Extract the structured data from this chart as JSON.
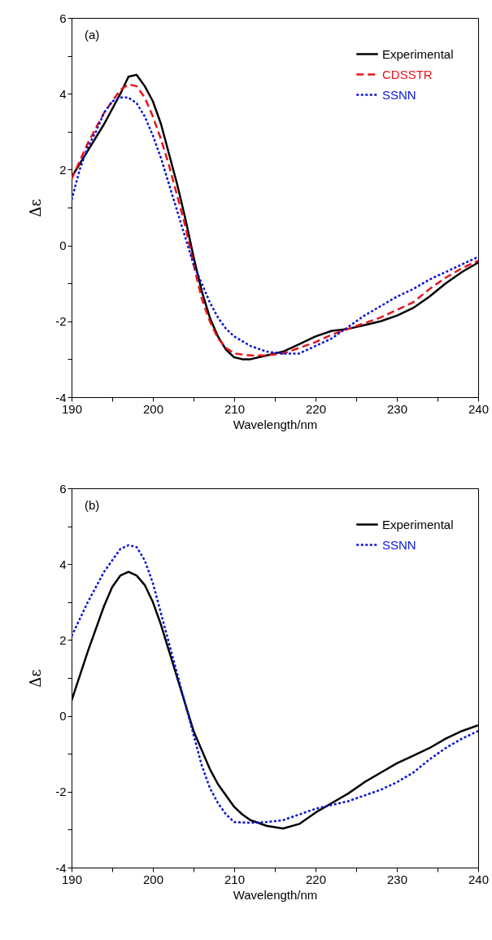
{
  "chart_data": [
    {
      "type": "line",
      "annotations": [
        "(a)"
      ],
      "xlabel": "Wavelength/nm",
      "ylabel": "Δε",
      "legend": "top right",
      "grid": false,
      "xlim": [
        190,
        240
      ],
      "xticks": [
        190,
        {
          "value": 195,
          "label": null
        },
        200,
        {
          "value": 205,
          "label": null
        },
        210,
        {
          "value": 215,
          "label": null
        },
        220,
        {
          "value": 225,
          "label": null
        },
        230,
        {
          "value": 235,
          "label": null
        },
        240
      ],
      "ylim": [
        -4,
        6
      ],
      "yticks": [
        -4,
        {
          "value": -3,
          "label": null
        },
        -2,
        {
          "value": -1,
          "label": null
        },
        0,
        {
          "value": 1,
          "label": null
        },
        2,
        {
          "value": 3,
          "label": null
        },
        4,
        {
          "value": 5,
          "label": null
        },
        6
      ],
      "series": [
        {
          "name": "Experimental",
          "color": "#000000",
          "line_style": "solid",
          "x": [
            190,
            192,
            194,
            196,
            197,
            198,
            199,
            200,
            201,
            202,
            203,
            204,
            205,
            206,
            207,
            208,
            209,
            210,
            211,
            212,
            214,
            216,
            218,
            220,
            222,
            224,
            226,
            228,
            230,
            232,
            234,
            236,
            238,
            240
          ],
          "values": [
            1.8,
            2.5,
            3.2,
            4.0,
            4.45,
            4.5,
            4.2,
            3.8,
            3.2,
            2.4,
            1.6,
            0.7,
            -0.3,
            -1.2,
            -1.9,
            -2.4,
            -2.75,
            -2.95,
            -3.0,
            -3.0,
            -2.9,
            -2.8,
            -2.6,
            -2.4,
            -2.25,
            -2.2,
            -2.1,
            -2.0,
            -1.85,
            -1.65,
            -1.35,
            -1.0,
            -0.7,
            -0.45
          ]
        },
        {
          "name": "CDSSTR",
          "color": "#e8141c",
          "line_style": "dashed",
          "x": [
            190,
            192,
            194,
            196,
            197,
            198,
            199,
            200,
            201,
            202,
            203,
            204,
            205,
            206,
            207,
            208,
            209,
            210,
            212,
            214,
            216,
            218,
            220,
            222,
            224,
            226,
            228,
            230,
            232,
            234,
            236,
            238,
            240
          ],
          "values": [
            1.75,
            2.7,
            3.5,
            4.1,
            4.25,
            4.2,
            3.9,
            3.4,
            2.8,
            2.1,
            1.3,
            0.5,
            -0.5,
            -1.4,
            -2.0,
            -2.45,
            -2.7,
            -2.85,
            -2.9,
            -2.9,
            -2.85,
            -2.7,
            -2.55,
            -2.35,
            -2.2,
            -2.05,
            -1.9,
            -1.7,
            -1.5,
            -1.15,
            -0.85,
            -0.6,
            -0.4
          ]
        },
        {
          "name": "SSNN",
          "color": "#0a14d4",
          "line_style": "dotted",
          "x": [
            190,
            191,
            192,
            193,
            194,
            195,
            196,
            197,
            198,
            199,
            200,
            201,
            202,
            203,
            204,
            205,
            206,
            207,
            208,
            209,
            210,
            212,
            214,
            216,
            218,
            220,
            222,
            224,
            226,
            228,
            230,
            232,
            234,
            236,
            238,
            240
          ],
          "values": [
            1.2,
            2.0,
            2.6,
            3.0,
            3.5,
            3.8,
            3.9,
            3.9,
            3.75,
            3.4,
            2.9,
            2.3,
            1.6,
            0.9,
            0.2,
            -0.5,
            -1.0,
            -1.5,
            -1.9,
            -2.2,
            -2.4,
            -2.65,
            -2.8,
            -2.85,
            -2.85,
            -2.65,
            -2.45,
            -2.15,
            -1.85,
            -1.6,
            -1.35,
            -1.15,
            -0.9,
            -0.7,
            -0.5,
            -0.3
          ]
        }
      ]
    },
    {
      "type": "line",
      "annotations": [
        "(b)"
      ],
      "xlabel": "Wavelength/nm",
      "ylabel": "Δε",
      "legend": "top right",
      "grid": false,
      "xlim": [
        190,
        240
      ],
      "xticks": [
        190,
        {
          "value": 195,
          "label": null
        },
        200,
        {
          "value": 205,
          "label": null
        },
        210,
        {
          "value": 215,
          "label": null
        },
        220,
        {
          "value": 225,
          "label": null
        },
        230,
        {
          "value": 235,
          "label": null
        },
        240
      ],
      "ylim": [
        -4,
        6
      ],
      "yticks": [
        -4,
        {
          "value": -3,
          "label": null
        },
        -2,
        {
          "value": -1,
          "label": null
        },
        0,
        {
          "value": 1,
          "label": null
        },
        2,
        {
          "value": 3,
          "label": null
        },
        4,
        {
          "value": 5,
          "label": null
        },
        6
      ],
      "series": [
        {
          "name": "Experimental",
          "color": "#000000",
          "line_style": "solid",
          "x": [
            190,
            192,
            194,
            195,
            196,
            197,
            198,
            199,
            200,
            201,
            202,
            203,
            204,
            205,
            206,
            207,
            208,
            209,
            210,
            211,
            212,
            214,
            216,
            218,
            220,
            222,
            224,
            226,
            228,
            230,
            232,
            234,
            236,
            238,
            240
          ],
          "values": [
            0.4,
            1.7,
            2.9,
            3.4,
            3.7,
            3.8,
            3.7,
            3.45,
            3.0,
            2.4,
            1.7,
            1.0,
            0.3,
            -0.4,
            -0.9,
            -1.4,
            -1.8,
            -2.1,
            -2.4,
            -2.6,
            -2.75,
            -2.9,
            -2.97,
            -2.85,
            -2.55,
            -2.3,
            -2.05,
            -1.75,
            -1.5,
            -1.25,
            -1.05,
            -0.85,
            -0.6,
            -0.4,
            -0.25
          ]
        },
        {
          "name": "SSNN",
          "color": "#0a14d4",
          "line_style": "dotted",
          "x": [
            190,
            192,
            194,
            196,
            197,
            198,
            199,
            200,
            201,
            202,
            203,
            204,
            205,
            206,
            207,
            208,
            209,
            210,
            212,
            214,
            216,
            218,
            220,
            222,
            224,
            226,
            228,
            230,
            232,
            234,
            236,
            238,
            240
          ],
          "values": [
            2.1,
            3.0,
            3.8,
            4.4,
            4.5,
            4.45,
            4.1,
            3.5,
            2.7,
            1.9,
            1.1,
            0.3,
            -0.5,
            -1.3,
            -1.9,
            -2.3,
            -2.6,
            -2.8,
            -2.82,
            -2.8,
            -2.75,
            -2.6,
            -2.45,
            -2.35,
            -2.25,
            -2.1,
            -1.95,
            -1.75,
            -1.5,
            -1.15,
            -0.85,
            -0.6,
            -0.4
          ]
        }
      ]
    }
  ]
}
